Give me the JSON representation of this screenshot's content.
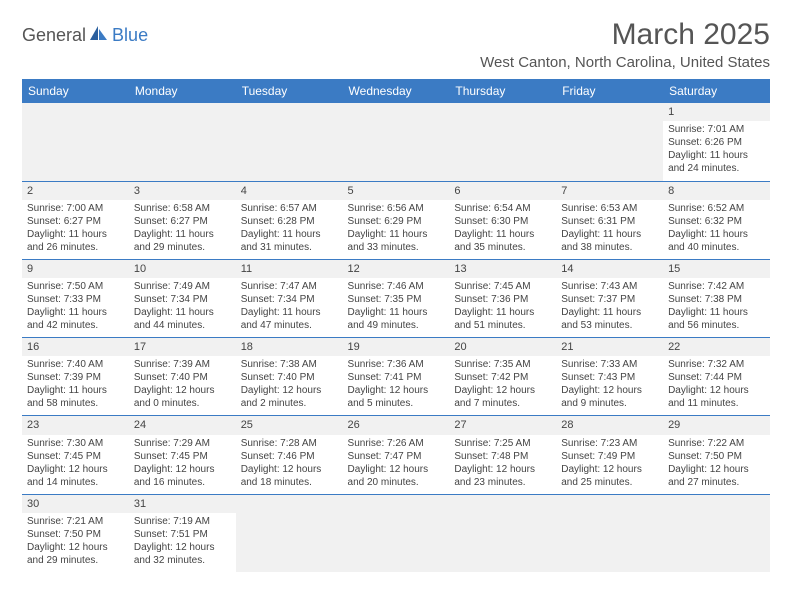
{
  "logo": {
    "text1": "General",
    "text2": "Blue"
  },
  "title": "March 2025",
  "location": "West Canton, North Carolina, United States",
  "dayHeaders": [
    "Sunday",
    "Monday",
    "Tuesday",
    "Wednesday",
    "Thursday",
    "Friday",
    "Saturday"
  ],
  "colors": {
    "headerBg": "#3b7bc4",
    "headerText": "#ffffff",
    "cellStripe": "#f1f1f1",
    "border": "#3b7bc4"
  },
  "weeks": [
    [
      null,
      null,
      null,
      null,
      null,
      null,
      {
        "d": "1",
        "sr": "Sunrise: 7:01 AM",
        "ss": "Sunset: 6:26 PM",
        "dl1": "Daylight: 11 hours",
        "dl2": "and 24 minutes."
      }
    ],
    [
      {
        "d": "2",
        "sr": "Sunrise: 7:00 AM",
        "ss": "Sunset: 6:27 PM",
        "dl1": "Daylight: 11 hours",
        "dl2": "and 26 minutes."
      },
      {
        "d": "3",
        "sr": "Sunrise: 6:58 AM",
        "ss": "Sunset: 6:27 PM",
        "dl1": "Daylight: 11 hours",
        "dl2": "and 29 minutes."
      },
      {
        "d": "4",
        "sr": "Sunrise: 6:57 AM",
        "ss": "Sunset: 6:28 PM",
        "dl1": "Daylight: 11 hours",
        "dl2": "and 31 minutes."
      },
      {
        "d": "5",
        "sr": "Sunrise: 6:56 AM",
        "ss": "Sunset: 6:29 PM",
        "dl1": "Daylight: 11 hours",
        "dl2": "and 33 minutes."
      },
      {
        "d": "6",
        "sr": "Sunrise: 6:54 AM",
        "ss": "Sunset: 6:30 PM",
        "dl1": "Daylight: 11 hours",
        "dl2": "and 35 minutes."
      },
      {
        "d": "7",
        "sr": "Sunrise: 6:53 AM",
        "ss": "Sunset: 6:31 PM",
        "dl1": "Daylight: 11 hours",
        "dl2": "and 38 minutes."
      },
      {
        "d": "8",
        "sr": "Sunrise: 6:52 AM",
        "ss": "Sunset: 6:32 PM",
        "dl1": "Daylight: 11 hours",
        "dl2": "and 40 minutes."
      }
    ],
    [
      {
        "d": "9",
        "sr": "Sunrise: 7:50 AM",
        "ss": "Sunset: 7:33 PM",
        "dl1": "Daylight: 11 hours",
        "dl2": "and 42 minutes."
      },
      {
        "d": "10",
        "sr": "Sunrise: 7:49 AM",
        "ss": "Sunset: 7:34 PM",
        "dl1": "Daylight: 11 hours",
        "dl2": "and 44 minutes."
      },
      {
        "d": "11",
        "sr": "Sunrise: 7:47 AM",
        "ss": "Sunset: 7:34 PM",
        "dl1": "Daylight: 11 hours",
        "dl2": "and 47 minutes."
      },
      {
        "d": "12",
        "sr": "Sunrise: 7:46 AM",
        "ss": "Sunset: 7:35 PM",
        "dl1": "Daylight: 11 hours",
        "dl2": "and 49 minutes."
      },
      {
        "d": "13",
        "sr": "Sunrise: 7:45 AM",
        "ss": "Sunset: 7:36 PM",
        "dl1": "Daylight: 11 hours",
        "dl2": "and 51 minutes."
      },
      {
        "d": "14",
        "sr": "Sunrise: 7:43 AM",
        "ss": "Sunset: 7:37 PM",
        "dl1": "Daylight: 11 hours",
        "dl2": "and 53 minutes."
      },
      {
        "d": "15",
        "sr": "Sunrise: 7:42 AM",
        "ss": "Sunset: 7:38 PM",
        "dl1": "Daylight: 11 hours",
        "dl2": "and 56 minutes."
      }
    ],
    [
      {
        "d": "16",
        "sr": "Sunrise: 7:40 AM",
        "ss": "Sunset: 7:39 PM",
        "dl1": "Daylight: 11 hours",
        "dl2": "and 58 minutes."
      },
      {
        "d": "17",
        "sr": "Sunrise: 7:39 AM",
        "ss": "Sunset: 7:40 PM",
        "dl1": "Daylight: 12 hours",
        "dl2": "and 0 minutes."
      },
      {
        "d": "18",
        "sr": "Sunrise: 7:38 AM",
        "ss": "Sunset: 7:40 PM",
        "dl1": "Daylight: 12 hours",
        "dl2": "and 2 minutes."
      },
      {
        "d": "19",
        "sr": "Sunrise: 7:36 AM",
        "ss": "Sunset: 7:41 PM",
        "dl1": "Daylight: 12 hours",
        "dl2": "and 5 minutes."
      },
      {
        "d": "20",
        "sr": "Sunrise: 7:35 AM",
        "ss": "Sunset: 7:42 PM",
        "dl1": "Daylight: 12 hours",
        "dl2": "and 7 minutes."
      },
      {
        "d": "21",
        "sr": "Sunrise: 7:33 AM",
        "ss": "Sunset: 7:43 PM",
        "dl1": "Daylight: 12 hours",
        "dl2": "and 9 minutes."
      },
      {
        "d": "22",
        "sr": "Sunrise: 7:32 AM",
        "ss": "Sunset: 7:44 PM",
        "dl1": "Daylight: 12 hours",
        "dl2": "and 11 minutes."
      }
    ],
    [
      {
        "d": "23",
        "sr": "Sunrise: 7:30 AM",
        "ss": "Sunset: 7:45 PM",
        "dl1": "Daylight: 12 hours",
        "dl2": "and 14 minutes."
      },
      {
        "d": "24",
        "sr": "Sunrise: 7:29 AM",
        "ss": "Sunset: 7:45 PM",
        "dl1": "Daylight: 12 hours",
        "dl2": "and 16 minutes."
      },
      {
        "d": "25",
        "sr": "Sunrise: 7:28 AM",
        "ss": "Sunset: 7:46 PM",
        "dl1": "Daylight: 12 hours",
        "dl2": "and 18 minutes."
      },
      {
        "d": "26",
        "sr": "Sunrise: 7:26 AM",
        "ss": "Sunset: 7:47 PM",
        "dl1": "Daylight: 12 hours",
        "dl2": "and 20 minutes."
      },
      {
        "d": "27",
        "sr": "Sunrise: 7:25 AM",
        "ss": "Sunset: 7:48 PM",
        "dl1": "Daylight: 12 hours",
        "dl2": "and 23 minutes."
      },
      {
        "d": "28",
        "sr": "Sunrise: 7:23 AM",
        "ss": "Sunset: 7:49 PM",
        "dl1": "Daylight: 12 hours",
        "dl2": "and 25 minutes."
      },
      {
        "d": "29",
        "sr": "Sunrise: 7:22 AM",
        "ss": "Sunset: 7:50 PM",
        "dl1": "Daylight: 12 hours",
        "dl2": "and 27 minutes."
      }
    ],
    [
      {
        "d": "30",
        "sr": "Sunrise: 7:21 AM",
        "ss": "Sunset: 7:50 PM",
        "dl1": "Daylight: 12 hours",
        "dl2": "and 29 minutes."
      },
      {
        "d": "31",
        "sr": "Sunrise: 7:19 AM",
        "ss": "Sunset: 7:51 PM",
        "dl1": "Daylight: 12 hours",
        "dl2": "and 32 minutes."
      },
      null,
      null,
      null,
      null,
      null
    ]
  ]
}
